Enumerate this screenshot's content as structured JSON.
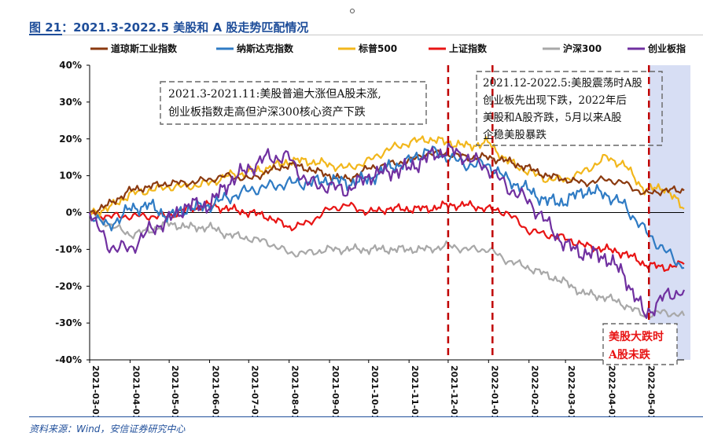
{
  "figure_title": "图 21：2021.3-2022.5 美股和 A 股走势匹配情况",
  "source": "资料来源：Wind，安信证券研究中心",
  "colors": {
    "道琼斯工业指数": "#8b3a0f",
    "纳斯达克指数": "#2f7bc4",
    "标普500": "#f2b71c",
    "上证指数": "#e81414",
    "沪深300": "#a8a8a8",
    "创业板指": "#7030a0",
    "title": "#1f4e9a",
    "highlight_band": "#c9d3f0",
    "annotation_red": "#e81414",
    "divider": "#c00000"
  },
  "annotations": {
    "box1_line1": "2021.3-2021.11:美股普遍大涨但A股未涨,",
    "box1_line2": "创业板指数走高但沪深300核心资产下跌",
    "box2_line1": "2021.12-2022.5:美股震荡时A股",
    "box2_line2": "创业板先出现下跌，2022年后",
    "box2_line3": "美股和A股齐跌，5月以来A股",
    "box2_line4": "企稳美股暴跌",
    "box3_line1": "美股大跌时",
    "box3_line2": "A股未跌"
  },
  "chart_data": {
    "type": "line",
    "x": [
      "2021-03-01",
      "2021-03-15",
      "2021-04-01",
      "2021-04-15",
      "2021-05-01",
      "2021-05-15",
      "2021-06-01",
      "2021-06-15",
      "2021-07-01",
      "2021-07-15",
      "2021-08-01",
      "2021-08-15",
      "2021-09-01",
      "2021-09-15",
      "2021-10-01",
      "2021-10-15",
      "2021-11-01",
      "2021-11-15",
      "2021-12-01",
      "2021-12-15",
      "2022-01-01",
      "2022-01-15",
      "2022-02-01",
      "2022-02-15",
      "2022-03-01",
      "2022-03-15",
      "2022-04-01",
      "2022-04-15",
      "2022-05-01",
      "2022-05-15",
      "2022-05-31"
    ],
    "xticks": [
      "2021-03-01",
      "2021-04-01",
      "2021-05-01",
      "2021-06-01",
      "2021-07-01",
      "2021-08-01",
      "2021-09-01",
      "2021-10-01",
      "2021-11-01",
      "2021-12-01",
      "2022-01-01",
      "2022-02-01",
      "2022-03-01",
      "2022-04-01",
      "2022-05-01"
    ],
    "ylim": [
      -40,
      40
    ],
    "yticks": [
      40,
      30,
      20,
      10,
      0,
      -10,
      -20,
      -30,
      -40
    ],
    "ytick_labels": [
      "40%",
      "30%",
      "20%",
      "10%",
      "0%",
      "-10%",
      "-20%",
      "-30%",
      "-40%"
    ],
    "legend_position": "top",
    "grid": false,
    "series": [
      {
        "name": "道琼斯工业指数",
        "values": [
          0,
          2,
          6,
          7,
          8,
          8,
          9,
          10,
          9,
          11,
          13,
          12,
          10,
          9,
          12,
          13,
          14,
          16,
          16,
          15,
          15,
          14,
          12,
          10,
          9,
          8,
          9,
          8,
          5,
          6,
          6
        ]
      },
      {
        "name": "纳斯达克指数",
        "values": [
          0,
          -4,
          1,
          2,
          -1,
          1,
          2,
          4,
          6,
          7,
          8,
          8,
          9,
          8,
          9,
          12,
          14,
          17,
          15,
          13,
          13,
          9,
          6,
          3,
          3,
          6,
          5,
          2,
          -5,
          -10,
          -15
        ]
      },
      {
        "name": "标普500",
        "values": [
          0,
          1,
          5,
          6,
          7,
          7,
          8,
          10,
          11,
          12,
          14,
          14,
          13,
          12,
          14,
          17,
          19,
          20,
          19,
          18,
          19,
          14,
          11,
          9,
          9,
          11,
          15,
          13,
          6,
          7,
          1
        ]
      },
      {
        "name": "上证指数",
        "values": [
          0,
          -1,
          -1,
          -1,
          -1,
          1,
          2,
          1,
          0,
          -1,
          -4,
          -3,
          1,
          2,
          0,
          1,
          1,
          1,
          2,
          2,
          1,
          0,
          -5,
          -6,
          -7,
          -9,
          -10,
          -11,
          -14,
          -15,
          -14
        ]
      },
      {
        "name": "沪深300",
        "values": [
          0,
          -3,
          -6,
          -5,
          -3,
          -4,
          -4,
          -6,
          -7,
          -8,
          -11,
          -11,
          -10,
          -10,
          -10,
          -10,
          -10,
          -10,
          -9,
          -10,
          -10,
          -13,
          -15,
          -17,
          -19,
          -22,
          -23,
          -25,
          -28,
          -27,
          -28
        ]
      },
      {
        "name": "创业板指",
        "values": [
          0,
          -9,
          -10,
          -5,
          -2,
          2,
          2,
          8,
          12,
          15,
          15,
          8,
          7,
          6,
          10,
          11,
          12,
          15,
          17,
          15,
          12,
          7,
          3,
          -3,
          -9,
          -11,
          -12,
          -17,
          -28,
          -23,
          -21
        ]
      }
    ]
  }
}
